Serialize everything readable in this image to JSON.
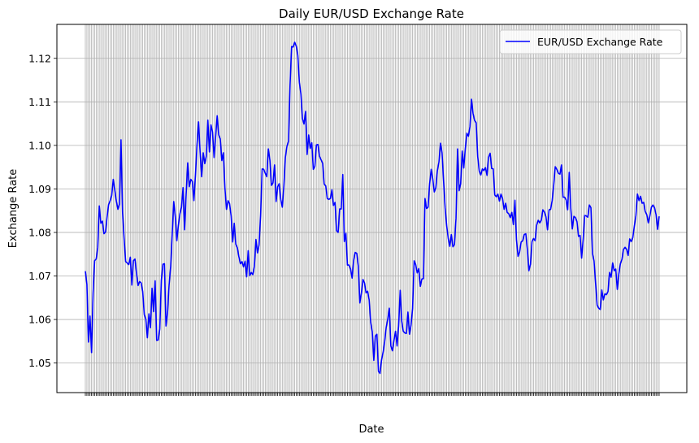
{
  "chart_data": {
    "type": "line",
    "title": "Daily EUR/USD Exchange Rate",
    "xlabel": "Date",
    "ylabel": "Exchange Rate",
    "ylim": [
      1.0432,
      1.1278
    ],
    "yticks": [
      1.05,
      1.06,
      1.07,
      1.08,
      1.09,
      1.1,
      1.11,
      1.12
    ],
    "ytick_labels": [
      "1.05",
      "1.06",
      "1.07",
      "1.08",
      "1.09",
      "1.10",
      "1.11",
      "1.12"
    ],
    "grid": true,
    "legend": "top-right",
    "series": [
      {
        "name": "EUR/USD Exchange Rate",
        "color": "#0000ff",
        "values": [
          1.0711,
          1.0681,
          1.0548,
          1.0608,
          1.0524,
          1.0661,
          1.0735,
          1.0739,
          1.0765,
          1.0861,
          1.0821,
          1.0826,
          1.0797,
          1.0801,
          1.0835,
          1.0864,
          1.0873,
          1.0885,
          1.0922,
          1.0897,
          1.0872,
          1.0853,
          1.0865,
          1.1013,
          1.0845,
          1.0786,
          1.0733,
          1.073,
          1.0726,
          1.0743,
          1.0679,
          1.0735,
          1.0739,
          1.0706,
          1.0678,
          1.0687,
          1.0684,
          1.0664,
          1.0611,
          1.0601,
          1.0558,
          1.0613,
          1.0581,
          1.0672,
          1.0618,
          1.0689,
          1.0552,
          1.0553,
          1.0578,
          1.069,
          1.0727,
          1.0728,
          1.0585,
          1.0615,
          1.0679,
          1.0721,
          1.0795,
          1.0871,
          1.0836,
          1.0781,
          1.0817,
          1.0843,
          1.0858,
          1.0903,
          1.0806,
          1.0888,
          1.096,
          1.0905,
          1.0922,
          1.0917,
          1.0873,
          1.0932,
          1.1001,
          1.1054,
          1.0985,
          1.0928,
          1.0983,
          1.0958,
          1.0975,
          1.1058,
          1.0985,
          1.1047,
          1.1031,
          1.0972,
          1.102,
          1.1068,
          1.1024,
          1.1015,
          1.0965,
          1.0983,
          1.0902,
          1.0853,
          1.0873,
          1.0866,
          1.0838,
          1.0778,
          1.0821,
          1.0773,
          1.0765,
          1.0744,
          1.0728,
          1.0733,
          1.0721,
          1.0734,
          1.0698,
          1.0758,
          1.0701,
          1.0708,
          1.0703,
          1.0722,
          1.0784,
          1.0753,
          1.0771,
          1.0839,
          1.0946,
          1.0945,
          1.0936,
          1.0928,
          1.0992,
          1.0966,
          1.0908,
          1.0914,
          1.0955,
          1.0871,
          1.0905,
          1.0912,
          1.0876,
          1.0858,
          1.0906,
          1.0973,
          1.0998,
          1.1009,
          1.1139,
          1.1227,
          1.1226,
          1.1237,
          1.1228,
          1.1207,
          1.1145,
          1.1118,
          1.1061,
          1.1049,
          1.1078,
          1.0979,
          1.1024,
          1.0993,
          1.1006,
          1.0945,
          1.0952,
          1.1001,
          1.1002,
          1.0975,
          1.0967,
          1.0959,
          1.0911,
          1.0907,
          1.0878,
          1.0876,
          1.0878,
          1.0898,
          1.0862,
          1.0869,
          1.0804,
          1.08,
          1.0854,
          1.0854,
          1.0933,
          1.0779,
          1.0798,
          1.0725,
          1.0725,
          1.0716,
          1.0695,
          1.0736,
          1.0754,
          1.0752,
          1.0723,
          1.0638,
          1.0661,
          1.0692,
          1.0684,
          1.0661,
          1.0665,
          1.0645,
          1.0593,
          1.0572,
          1.0506,
          1.0562,
          1.0566,
          1.0481,
          1.0476,
          1.0507,
          1.0525,
          1.0549,
          1.0582,
          1.0601,
          1.0626,
          1.0539,
          1.0528,
          1.0552,
          1.0573,
          1.0539,
          1.0585,
          1.0667,
          1.0596,
          1.0573,
          1.0569,
          1.0568,
          1.0617,
          1.0566,
          1.0587,
          1.0625,
          1.0735,
          1.0726,
          1.0707,
          1.0717,
          1.0676,
          1.0693,
          1.0694,
          1.0878,
          1.0855,
          1.0858,
          1.0912,
          1.0945,
          1.0923,
          1.0893,
          1.0903,
          1.0942,
          1.0962,
          1.1005,
          1.0983,
          1.0917,
          1.0856,
          1.0815,
          1.0786,
          1.0768,
          1.0795,
          1.0767,
          1.0772,
          1.0832,
          1.0992,
          1.0896,
          1.0912,
          1.0987,
          1.0948,
          1.0993,
          1.1028,
          1.1021,
          1.1043,
          1.1106,
          1.1073,
          1.1057,
          1.1052,
          1.0974,
          1.0941,
          1.0932,
          1.0946,
          1.0942,
          1.0949,
          1.0931,
          1.0973,
          1.0982,
          1.0947,
          1.0946,
          1.0886,
          1.0882,
          1.0888,
          1.0872,
          1.0888,
          1.0878,
          1.0853,
          1.0867,
          1.0846,
          1.0843,
          1.0834,
          1.0846,
          1.0818,
          1.0874,
          1.0783,
          1.0745,
          1.0755,
          1.0778,
          1.0781,
          1.0795,
          1.0797,
          1.0762,
          1.0712,
          1.0727,
          1.0779,
          1.0786,
          1.0781,
          1.0817,
          1.0828,
          1.0822,
          1.0828,
          1.0852,
          1.0847,
          1.0836,
          1.0806,
          1.0852,
          1.0853,
          1.0873,
          1.0909,
          1.0951,
          1.0945,
          1.0936,
          1.0934,
          1.0955,
          1.0881,
          1.0881,
          1.0875,
          1.0852,
          1.0938,
          1.0855,
          1.0808,
          1.0837,
          1.0834,
          1.0825,
          1.0791,
          1.0793,
          1.0741,
          1.0784,
          1.0839,
          1.0838,
          1.0835,
          1.0863,
          1.0857,
          1.0751,
          1.0735,
          1.0683,
          1.0633,
          1.0626,
          1.0623,
          1.0668,
          1.0645,
          1.0659,
          1.0657,
          1.0664,
          1.0708,
          1.0697,
          1.073,
          1.0712,
          1.0716,
          1.0669,
          1.0705,
          1.0728,
          1.0738,
          1.0761,
          1.0766,
          1.0761,
          1.0747,
          1.0785,
          1.0779,
          1.0788,
          1.0815,
          1.0839,
          1.0888,
          1.0873,
          1.0883,
          1.0867,
          1.0869,
          1.0848,
          1.0841,
          1.0822,
          1.0838,
          1.0858,
          1.0863,
          1.0857,
          1.0841,
          1.0807,
          1.0837
        ]
      }
    ]
  }
}
